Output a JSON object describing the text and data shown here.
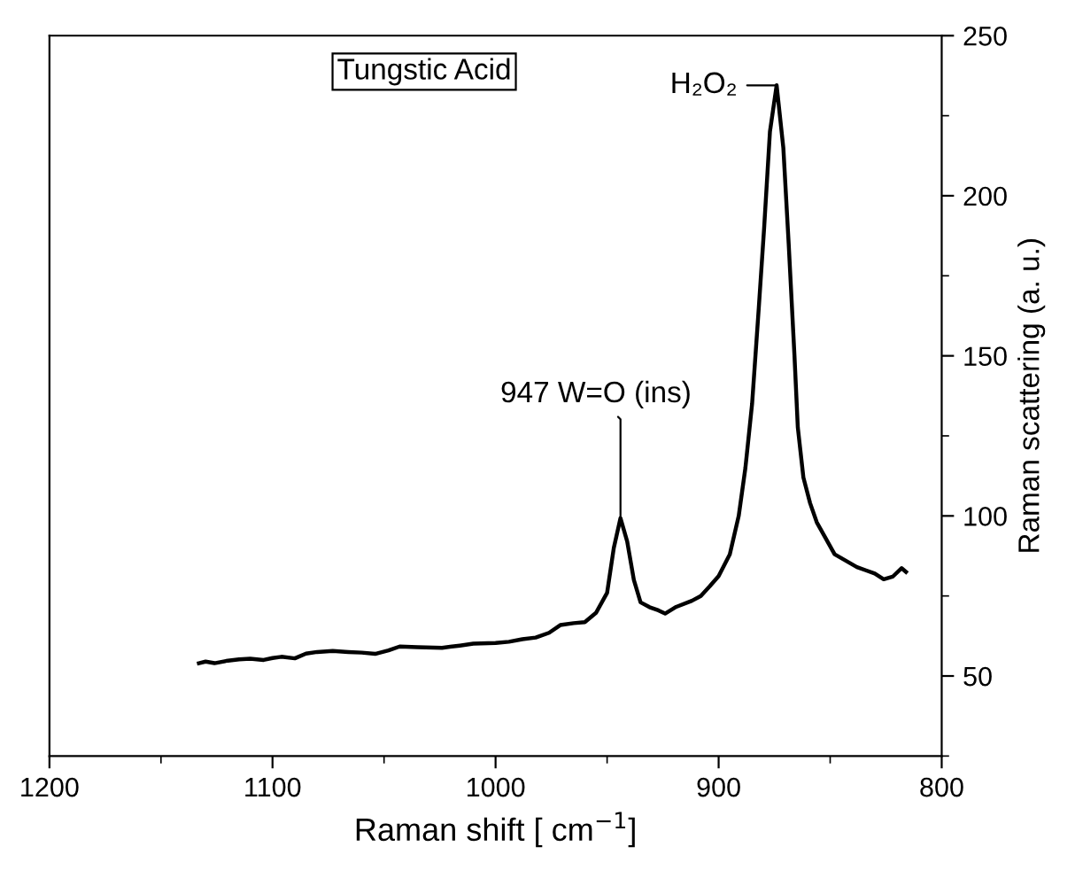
{
  "chart_data": {
    "type": "line",
    "xlabel": "Raman shift [ cm$^{−1}$]",
    "ylabel": "Raman scattering (a. u.)",
    "xlim": [
      1200,
      800
    ],
    "xticks": [
      1200,
      1100,
      1000,
      900,
      800
    ],
    "ylim": [
      25,
      250
    ],
    "yticks": [
      50,
      100,
      150,
      200,
      250
    ],
    "grid": false,
    "legend": false,
    "marker": "none",
    "line_style": "solid",
    "annotations": [
      "Tungstic Acid",
      {
        "text": "947 W=O (ins)",
        "x": 944,
        "y": 99
      },
      {
        "text": "H₂O₂",
        "x": 874,
        "y": 234.5
      }
    ],
    "series": [
      {
        "color": "#000000",
        "x": [
          1133,
          1130,
          1126,
          1120,
          1115,
          1110,
          1104,
          1100,
          1096,
          1090,
          1085,
          1080,
          1073,
          1066,
          1060,
          1054,
          1048,
          1043,
          1035,
          1024,
          1016,
          1010,
          1000,
          994,
          988,
          982,
          976,
          971,
          965,
          960,
          955,
          950,
          947,
          944,
          941,
          938,
          935,
          931,
          927,
          924,
          919,
          912,
          908,
          904,
          900,
          895,
          891,
          888,
          885,
          882,
          879.6,
          877,
          874,
          871,
          868.6,
          866,
          864.5,
          862,
          859,
          856,
          852,
          848,
          843,
          838,
          834,
          830,
          826,
          822,
          818,
          816
        ],
        "values": [
          54,
          54.5,
          54,
          54.8,
          55.2,
          55.4,
          55,
          55.6,
          56,
          55.5,
          57,
          57.5,
          57.8,
          57.5,
          57.3,
          56.9,
          58,
          59.2,
          59,
          58.8,
          59.5,
          60.1,
          60.3,
          60.7,
          61.5,
          62,
          63.5,
          65.9,
          66.5,
          66.8,
          69.7,
          76,
          90,
          99.3,
          92,
          80,
          73,
          71.5,
          70.5,
          69.5,
          71.6,
          73.5,
          75,
          78,
          81.2,
          88,
          100,
          115,
          135,
          165,
          190,
          220,
          234.5,
          215,
          185,
          150,
          127.6,
          112,
          104,
          98,
          93,
          88,
          86,
          84,
          83,
          82,
          80.2,
          81,
          83.7,
          82.5
        ]
      }
    ]
  }
}
